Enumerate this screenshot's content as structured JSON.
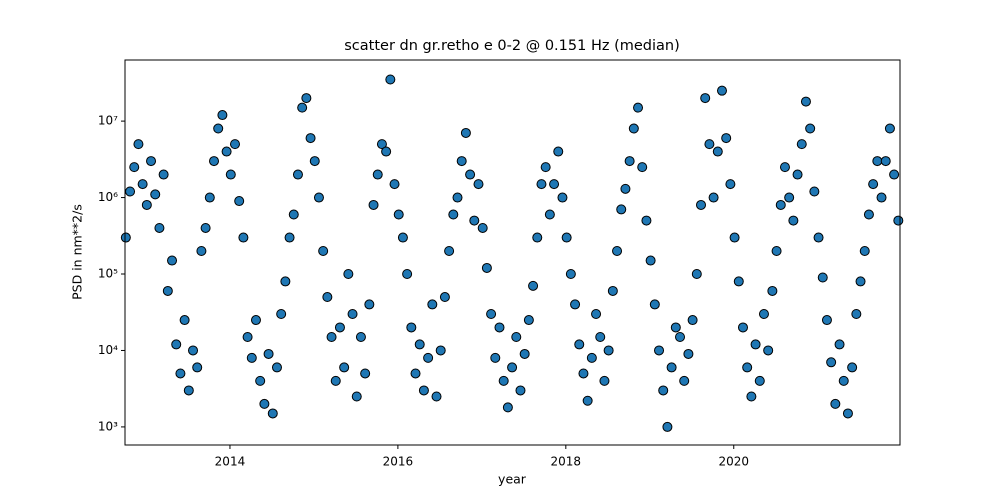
{
  "chart_data": {
    "type": "scatter",
    "title": "scatter dn gr.retho e 0-2 @ 0.151 Hz (median)",
    "x_label": "year",
    "y_label": "PSD in nm**2/s",
    "color": "#1f77b4",
    "edgecolor": "#000000",
    "log_y": true,
    "xlim": [
      2012.75,
      2021.98
    ],
    "ylim": [
      580,
      63000000
    ],
    "xticks": [
      2014,
      2016,
      2018,
      2020
    ],
    "yticks": [
      {
        "value": 1000,
        "label": "10³"
      },
      {
        "value": 10000,
        "label": "10⁴"
      },
      {
        "value": 100000,
        "label": "10⁵"
      },
      {
        "value": 1000000,
        "label": "10⁶"
      },
      {
        "value": 10000000,
        "label": "10⁷"
      }
    ],
    "x": [
      2012.76,
      2012.81,
      2012.86,
      2012.91,
      2012.96,
      2013.01,
      2013.06,
      2013.11,
      2013.16,
      2013.21,
      2013.26,
      2013.31,
      2013.36,
      2013.41,
      2013.46,
      2013.51,
      2013.56,
      2013.61,
      2013.66,
      2013.71,
      2013.76,
      2013.81,
      2013.86,
      2013.91,
      2013.96,
      2014.01,
      2014.06,
      2014.11,
      2014.16,
      2014.21,
      2014.26,
      2014.31,
      2014.36,
      2014.41,
      2014.46,
      2014.51,
      2014.56,
      2014.61,
      2014.66,
      2014.71,
      2014.76,
      2014.81,
      2014.86,
      2014.91,
      2014.96,
      2015.01,
      2015.06,
      2015.11,
      2015.16,
      2015.21,
      2015.26,
      2015.31,
      2015.36,
      2015.41,
      2015.46,
      2015.51,
      2015.56,
      2015.61,
      2015.66,
      2015.71,
      2015.76,
      2015.81,
      2015.86,
      2015.91,
      2015.96,
      2016.01,
      2016.06,
      2016.11,
      2016.16,
      2016.21,
      2016.26,
      2016.31,
      2016.36,
      2016.41,
      2016.46,
      2016.51,
      2016.56,
      2016.61,
      2016.66,
      2016.71,
      2016.76,
      2016.81,
      2016.86,
      2016.91,
      2016.96,
      2017.01,
      2017.06,
      2017.11,
      2017.16,
      2017.21,
      2017.26,
      2017.31,
      2017.36,
      2017.41,
      2017.46,
      2017.51,
      2017.56,
      2017.61,
      2017.66,
      2017.71,
      2017.76,
      2017.81,
      2017.86,
      2017.91,
      2017.96,
      2018.01,
      2018.06,
      2018.11,
      2018.16,
      2018.21,
      2018.26,
      2018.31,
      2018.36,
      2018.41,
      2018.46,
      2018.51,
      2018.56,
      2018.61,
      2018.66,
      2018.71,
      2018.76,
      2018.81,
      2018.86,
      2018.91,
      2018.96,
      2019.01,
      2019.06,
      2019.11,
      2019.16,
      2019.21,
      2019.26,
      2019.31,
      2019.36,
      2019.41,
      2019.46,
      2019.51,
      2019.56,
      2019.61,
      2019.66,
      2019.71,
      2019.76,
      2019.81,
      2019.86,
      2019.91,
      2019.96,
      2020.01,
      2020.06,
      2020.11,
      2020.16,
      2020.21,
      2020.26,
      2020.31,
      2020.36,
      2020.41,
      2020.46,
      2020.51,
      2020.56,
      2020.61,
      2020.66,
      2020.71,
      2020.76,
      2020.81,
      2020.86,
      2020.91,
      2020.96,
      2021.01,
      2021.06,
      2021.11,
      2021.16,
      2021.21,
      2021.26,
      2021.31,
      2021.36,
      2021.41,
      2021.46,
      2021.51,
      2021.56,
      2021.61,
      2021.66,
      2021.71,
      2021.76,
      2021.81,
      2021.86,
      2021.91,
      2021.96
    ],
    "values": [
      300000,
      1200000,
      2500000,
      5000000,
      1500000,
      800000,
      3000000,
      1100000,
      400000,
      2000000,
      60000,
      150000,
      12000,
      5000,
      25000,
      3000,
      10000,
      6000,
      200000,
      400000,
      1000000,
      3000000,
      8000000,
      12000000,
      4000000,
      2000000,
      5000000,
      900000,
      300000,
      15000,
      8000,
      25000,
      4000,
      2000,
      9000,
      1500,
      6000,
      30000,
      80000,
      300000,
      600000,
      2000000,
      15000000,
      20000000,
      6000000,
      3000000,
      1000000,
      200000,
      50000,
      15000,
      4000,
      20000,
      6000,
      100000,
      30000,
      2500,
      15000,
      5000,
      40000,
      800000,
      2000000,
      5000000,
      4000000,
      35000000,
      1500000,
      600000,
      300000,
      100000,
      20000,
      5000,
      12000,
      3000,
      8000,
      40000,
      2500,
      10000,
      50000,
      200000,
      600000,
      1000000,
      3000000,
      7000000,
      2000000,
      500000,
      1500000,
      400000,
      120000,
      30000,
      8000,
      20000,
      4000,
      1800,
      6000,
      15000,
      3000,
      9000,
      25000,
      70000,
      300000,
      1500000,
      2500000,
      600000,
      1500000,
      4000000,
      1000000,
      300000,
      100000,
      40000,
      12000,
      5000,
      2200,
      8000,
      30000,
      15000,
      4000,
      10000,
      60000,
      200000,
      700000,
      1300000,
      3000000,
      8000000,
      15000000,
      2500000,
      500000,
      150000,
      40000,
      10000,
      3000,
      1000,
      6000,
      20000,
      15000,
      4000,
      9000,
      25000,
      100000,
      800000,
      20000000,
      5000000,
      1000000,
      4000000,
      25000000,
      6000000,
      1500000,
      300000,
      80000,
      20000,
      6000,
      2500,
      12000,
      4000,
      30000,
      10000,
      60000,
      200000,
      800000,
      2500000,
      1000000,
      500000,
      2000000,
      5000000,
      18000000,
      8000000,
      1200000,
      300000,
      90000,
      25000,
      7000,
      2000,
      12000,
      4000,
      1500,
      6000,
      30000,
      80000,
      200000,
      600000,
      1500000,
      3000000,
      1000000,
      3000000,
      8000000,
      2000000,
      500000
    ]
  }
}
